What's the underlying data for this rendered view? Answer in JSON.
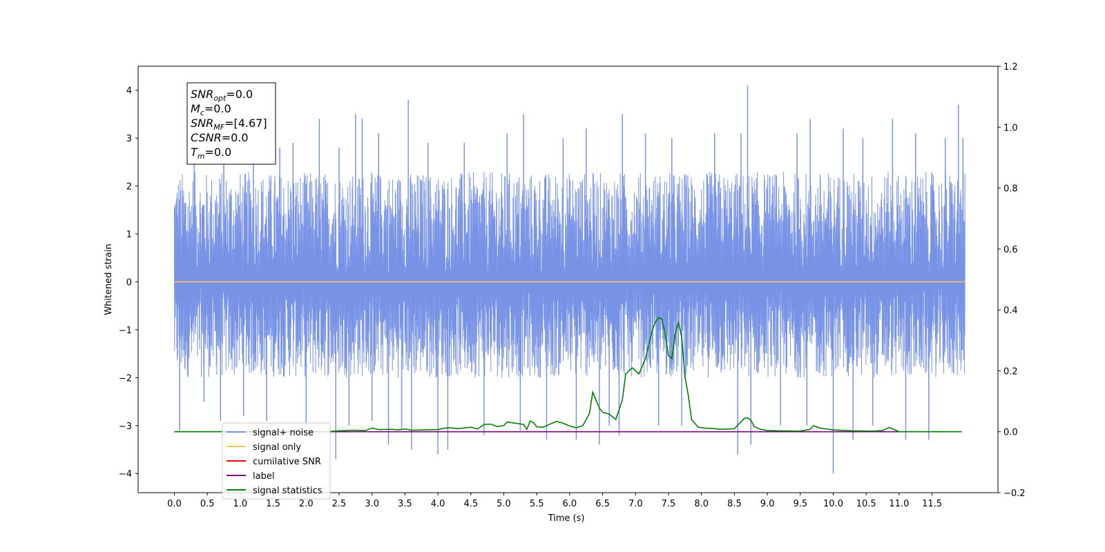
{
  "chart_data": {
    "type": "line",
    "xlabel": "Time (s)",
    "ylabel": "Whitened strain",
    "xlim": [
      -0.55,
      12.5
    ],
    "ylim": [
      -4.4,
      4.5
    ],
    "y2lim": [
      -0.2,
      1.2
    ],
    "x_ticks": [
      0.0,
      0.5,
      1.0,
      1.5,
      2.0,
      2.5,
      3.0,
      3.5,
      4.0,
      4.5,
      5.0,
      5.5,
      6.0,
      6.5,
      7.0,
      7.5,
      8.0,
      8.5,
      9.0,
      9.5,
      10.0,
      10.5,
      11.0,
      11.5
    ],
    "x_tick_labels": [
      "0.0",
      "0.5",
      "1.0",
      "1.5",
      "2.0",
      "2.5",
      "3.0",
      "3.5",
      "4.0",
      "4.5",
      "5.0",
      "5.5",
      "6.0",
      "6.5",
      "7.0",
      "7.5",
      "8.0",
      "8.5",
      "9.0",
      "9.5",
      "10.0",
      "10.5",
      "11.0",
      "11.5"
    ],
    "y_ticks": [
      -4,
      -3,
      -2,
      -1,
      0,
      1,
      2,
      3,
      4
    ],
    "y_tick_labels": [
      "−4",
      "−3",
      "−2",
      "−1",
      "0",
      "1",
      "2",
      "3",
      "4"
    ],
    "y2_ticks": [
      -0.2,
      0.0,
      0.2,
      0.4,
      0.6,
      0.8,
      1.0,
      1.2
    ],
    "y2_tick_labels": [
      "−0.2",
      "0.0",
      "0.2",
      "0.4",
      "0.6",
      "0.8",
      "1.0",
      "1.2"
    ],
    "grid": false,
    "legend_position": "bottom-left",
    "series": [
      {
        "name": "signal+ noise",
        "color": "#7893e6",
        "axis": "left",
        "kind": "noise",
        "x_range": [
          0.0,
          12.0
        ],
        "envelope": [
          -2.0,
          2.3
        ],
        "spikes": [
          [
            0.08,
            -3.1
          ],
          [
            0.3,
            2.5
          ],
          [
            0.45,
            -2.5
          ],
          [
            0.7,
            -2.9
          ],
          [
            0.75,
            2.8
          ],
          [
            1.05,
            -2.8
          ],
          [
            1.2,
            2.6
          ],
          [
            1.4,
            -2.9
          ],
          [
            1.6,
            2.8
          ],
          [
            1.8,
            2.9
          ],
          [
            2.0,
            -3.0
          ],
          [
            2.2,
            3.4
          ],
          [
            2.45,
            -3.7
          ],
          [
            2.5,
            2.8
          ],
          [
            2.65,
            -3.0
          ],
          [
            2.75,
            3.5
          ],
          [
            2.85,
            3.4
          ],
          [
            3.0,
            -2.9
          ],
          [
            3.1,
            3.1
          ],
          [
            3.25,
            -3.4
          ],
          [
            3.45,
            -3.1
          ],
          [
            3.55,
            3.8
          ],
          [
            3.6,
            -3.5
          ],
          [
            3.85,
            2.9
          ],
          [
            4.0,
            -3.6
          ],
          [
            4.15,
            -3.5
          ],
          [
            4.4,
            2.9
          ],
          [
            4.7,
            -3.2
          ],
          [
            5.05,
            3.1
          ],
          [
            5.25,
            -3.1
          ],
          [
            5.3,
            3.5
          ],
          [
            5.65,
            -3.3
          ],
          [
            5.9,
            3.0
          ],
          [
            6.1,
            -3.3
          ],
          [
            6.25,
            3.2
          ],
          [
            6.45,
            -3.4
          ],
          [
            6.6,
            -3.0
          ],
          [
            6.75,
            -3.2
          ],
          [
            6.8,
            3.5
          ],
          [
            7.15,
            3.1
          ],
          [
            7.35,
            -3.0
          ],
          [
            7.55,
            3.0
          ],
          [
            7.7,
            -3.0
          ],
          [
            8.2,
            3.1
          ],
          [
            8.55,
            -3.6
          ],
          [
            8.6,
            3.1
          ],
          [
            8.7,
            4.1
          ],
          [
            8.75,
            -3.4
          ],
          [
            9.2,
            -3.0
          ],
          [
            9.45,
            3.1
          ],
          [
            9.6,
            -3.0
          ],
          [
            9.65,
            3.4
          ],
          [
            10.0,
            -4.0
          ],
          [
            10.15,
            3.2
          ],
          [
            10.3,
            -3.3
          ],
          [
            10.45,
            3.0
          ],
          [
            10.6,
            -3.0
          ],
          [
            10.9,
            3.4
          ],
          [
            11.1,
            -3.3
          ],
          [
            11.25,
            3.1
          ],
          [
            11.45,
            -3.3
          ],
          [
            11.7,
            3.0
          ],
          [
            11.9,
            3.7
          ],
          [
            11.97,
            3.0
          ]
        ]
      },
      {
        "name": "signal only",
        "color": "#ffbf66",
        "axis": "left",
        "x": [
          0.0,
          12.0
        ],
        "values": [
          0.0,
          0.0
        ]
      },
      {
        "name": "cumilative SNR",
        "color": "#ff0000",
        "axis": "left",
        "x": [],
        "values": []
      },
      {
        "name": "label",
        "color": "#800080",
        "axis": "right",
        "x": [
          0.0,
          11.95
        ],
        "values": [
          0.0,
          0.0
        ]
      },
      {
        "name": "signal statistics",
        "color": "#008000",
        "axis": "right",
        "x": [
          0.0,
          2.3,
          2.5,
          2.7,
          2.9,
          3.0,
          3.1,
          3.3,
          3.4,
          3.5,
          3.6,
          3.8,
          4.0,
          4.1,
          4.2,
          4.3,
          4.5,
          4.6,
          4.7,
          4.8,
          4.9,
          5.0,
          5.05,
          5.15,
          5.3,
          5.35,
          5.4,
          5.45,
          5.5,
          5.6,
          5.7,
          5.8,
          5.9,
          6.0,
          6.1,
          6.2,
          6.3,
          6.35,
          6.45,
          6.5,
          6.6,
          6.7,
          6.8,
          6.85,
          6.95,
          7.05,
          7.15,
          7.25,
          7.3,
          7.35,
          7.4,
          7.45,
          7.5,
          7.55,
          7.6,
          7.65,
          7.7,
          7.75,
          7.8,
          7.85,
          7.95,
          8.05,
          8.15,
          8.3,
          8.5,
          8.65,
          8.7,
          8.75,
          8.8,
          8.9,
          9.0,
          9.2,
          9.5,
          9.65,
          9.7,
          9.8,
          10.0,
          10.3,
          10.6,
          10.75,
          10.85,
          11.0,
          11.95
        ],
        "values": [
          0.0,
          0.0,
          0.003,
          0.005,
          0.004,
          0.012,
          0.007,
          0.008,
          0.006,
          0.009,
          0.005,
          0.006,
          0.007,
          0.012,
          0.013,
          0.01,
          0.015,
          0.009,
          0.024,
          0.025,
          0.017,
          0.02,
          0.032,
          0.029,
          0.024,
          0.008,
          0.035,
          0.03,
          0.016,
          0.015,
          0.025,
          0.034,
          0.028,
          0.019,
          0.013,
          0.02,
          0.06,
          0.13,
          0.078,
          0.064,
          0.058,
          0.04,
          0.105,
          0.19,
          0.21,
          0.19,
          0.24,
          0.33,
          0.36,
          0.375,
          0.37,
          0.32,
          0.25,
          0.24,
          0.32,
          0.36,
          0.31,
          0.18,
          0.12,
          0.04,
          0.015,
          0.012,
          0.011,
          0.008,
          0.01,
          0.044,
          0.046,
          0.038,
          0.017,
          0.008,
          0.004,
          0.003,
          0.002,
          0.008,
          0.02,
          0.012,
          0.006,
          0.003,
          0.002,
          0.004,
          0.014,
          0.0,
          0.0
        ]
      }
    ],
    "info_box": [
      {
        "name": "SNR",
        "sub": "opt",
        "value": "=0.0"
      },
      {
        "name": "M",
        "sub": "c",
        "value": "=0.0"
      },
      {
        "name": "SNR",
        "sub": "MF",
        "value": "=[4.67]"
      },
      {
        "name": "CSNR",
        "sub": "",
        "value": "=0.0"
      },
      {
        "name": "T",
        "sub": "m",
        "value": "=0.0"
      }
    ]
  }
}
